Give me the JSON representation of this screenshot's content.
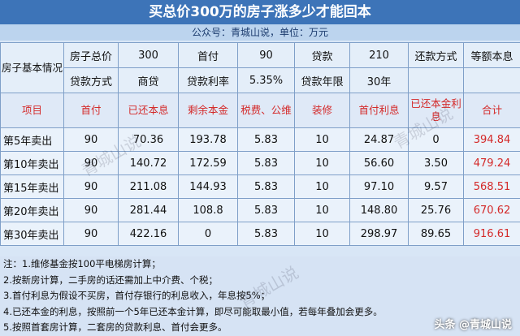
{
  "title": "买总价300万的房子涨多少才能回本",
  "subtitle": "公众号：青城山说，单位：万元",
  "info": {
    "label": "房子基本情况",
    "row1": [
      "房子总价",
      "300",
      "首付",
      "90",
      "贷款",
      "210",
      "还款方式",
      "等额本息"
    ],
    "row2": [
      "贷款方式",
      "商贷",
      "贷款利率",
      "5.35%",
      "贷款年限",
      "30年"
    ]
  },
  "headers": [
    "项目",
    "首付",
    "已还本息",
    "剩余本金",
    "税费、公维",
    "装修",
    "首付利息",
    "已还本金利息",
    "合计"
  ],
  "rows": [
    [
      "第5年卖出",
      "90",
      "70.36",
      "193.78",
      "5.83",
      "10",
      "24.87",
      "0",
      "394.84"
    ],
    [
      "第10年卖出",
      "90",
      "140.72",
      "172.59",
      "5.83",
      "10",
      "56.60",
      "3.50",
      "479.24"
    ],
    [
      "第15年卖出",
      "90",
      "211.08",
      "144.93",
      "5.83",
      "10",
      "97.10",
      "9.57",
      "568.51"
    ],
    [
      "第20年卖出",
      "90",
      "281.44",
      "108.8",
      "5.83",
      "10",
      "148.80",
      "25.76",
      "670.62"
    ],
    [
      "第30年卖出",
      "90",
      "422.16",
      "0",
      "5.83",
      "10",
      "298.97",
      "89.65",
      "916.61"
    ]
  ],
  "notes": [
    "注：1.维修基金按100平电梯房计算；",
    "2.按新房计算，二手房的话还需加上中介费、个税；",
    "3.首付利息为假设不买房，首付存银行的利息收入，年息按5%；",
    "4.已还本金的利息，按照前一个5年已还本金计算，即尽可能取最小值，若每年叠加会更多。",
    "5.按照首套房计算，二套房的贷款利息、首付会更多。"
  ],
  "watermark": "青城山说",
  "credit": "头条 @青城山说"
}
